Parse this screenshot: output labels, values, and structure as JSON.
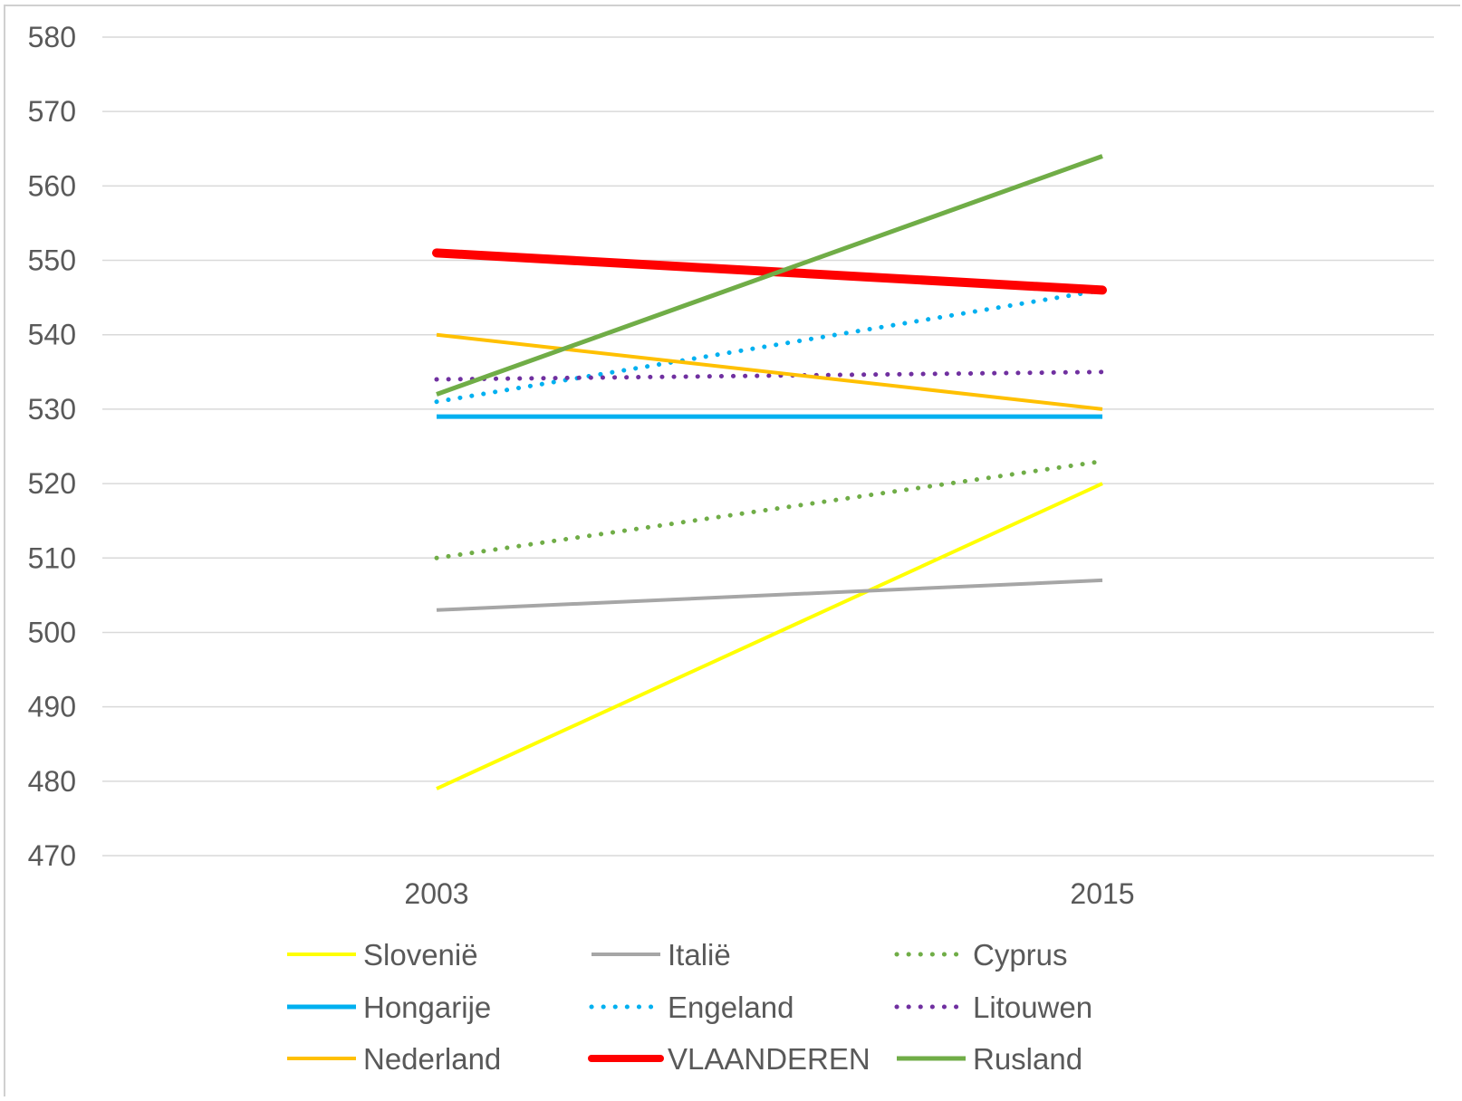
{
  "chart_data": {
    "type": "line",
    "categories": [
      "2003",
      "2015"
    ],
    "ylim": [
      470,
      580
    ],
    "yticks": [
      470,
      480,
      490,
      500,
      510,
      520,
      530,
      540,
      550,
      560,
      570,
      580
    ],
    "grid": true,
    "legend_position": "bottom",
    "series": [
      {
        "name": "Slovenië",
        "values": [
          479,
          520
        ],
        "color": "#ffff00",
        "style": "solid",
        "width": 4
      },
      {
        "name": "Italië",
        "values": [
          503,
          507
        ],
        "color": "#a6a6a6",
        "style": "solid",
        "width": 4
      },
      {
        "name": "Cyprus",
        "values": [
          510,
          523
        ],
        "color": "#70ad47",
        "style": "dotted",
        "width": 5
      },
      {
        "name": "Hongarije",
        "values": [
          529,
          529
        ],
        "color": "#00b0f0",
        "style": "solid",
        "width": 5
      },
      {
        "name": "Engeland",
        "values": [
          531,
          546
        ],
        "color": "#00b0f0",
        "style": "dotted",
        "width": 5
      },
      {
        "name": "Litouwen",
        "values": [
          534,
          535
        ],
        "color": "#7030a0",
        "style": "dotted",
        "width": 5
      },
      {
        "name": "Nederland",
        "values": [
          540,
          530
        ],
        "color": "#ffc000",
        "style": "solid",
        "width": 4
      },
      {
        "name": "VLAANDEREN",
        "values": [
          551,
          546
        ],
        "color": "#ff0000",
        "style": "solid",
        "width": 10
      },
      {
        "name": "Rusland",
        "values": [
          532,
          564
        ],
        "color": "#70ad47",
        "style": "solid",
        "width": 5
      }
    ]
  }
}
